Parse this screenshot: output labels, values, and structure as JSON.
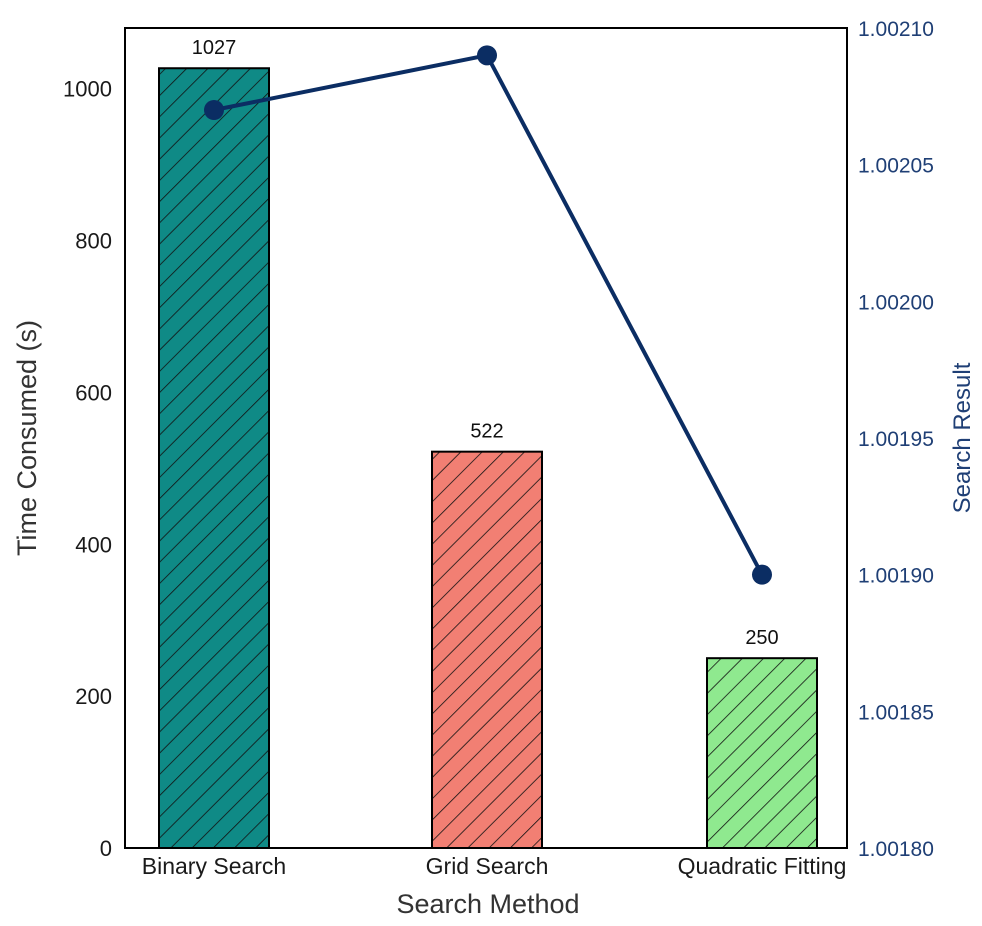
{
  "chart_data": {
    "type": "bar",
    "title": "",
    "categories": [
      "Binary Search",
      "Grid Search",
      "Quadratic Fitting"
    ],
    "xlabel": "Search Method",
    "ylabel": "Time Consumed (s)",
    "y2label": "Search Result",
    "ylim": [
      0,
      1080
    ],
    "y2lim": [
      1.0018,
      1.0021
    ],
    "yticks": [
      "0",
      "200",
      "400",
      "600",
      "800",
      "1000"
    ],
    "y2ticks": [
      "1.00180",
      "1.00185",
      "1.00190",
      "1.00195",
      "1.00200",
      "1.00205",
      "1.00210"
    ],
    "bars": {
      "values": [
        1027,
        522,
        250
      ],
      "labels": [
        "1027",
        "522",
        "250"
      ],
      "colors": [
        "#0f8a86",
        "#f27f73",
        "#8fe98f"
      ],
      "hatch": "diagonal"
    },
    "line": {
      "values": [
        1.00207,
        1.00209,
        1.0019
      ],
      "color": "#0b2d63",
      "axis": "right"
    },
    "grid": false,
    "legend": "none"
  }
}
